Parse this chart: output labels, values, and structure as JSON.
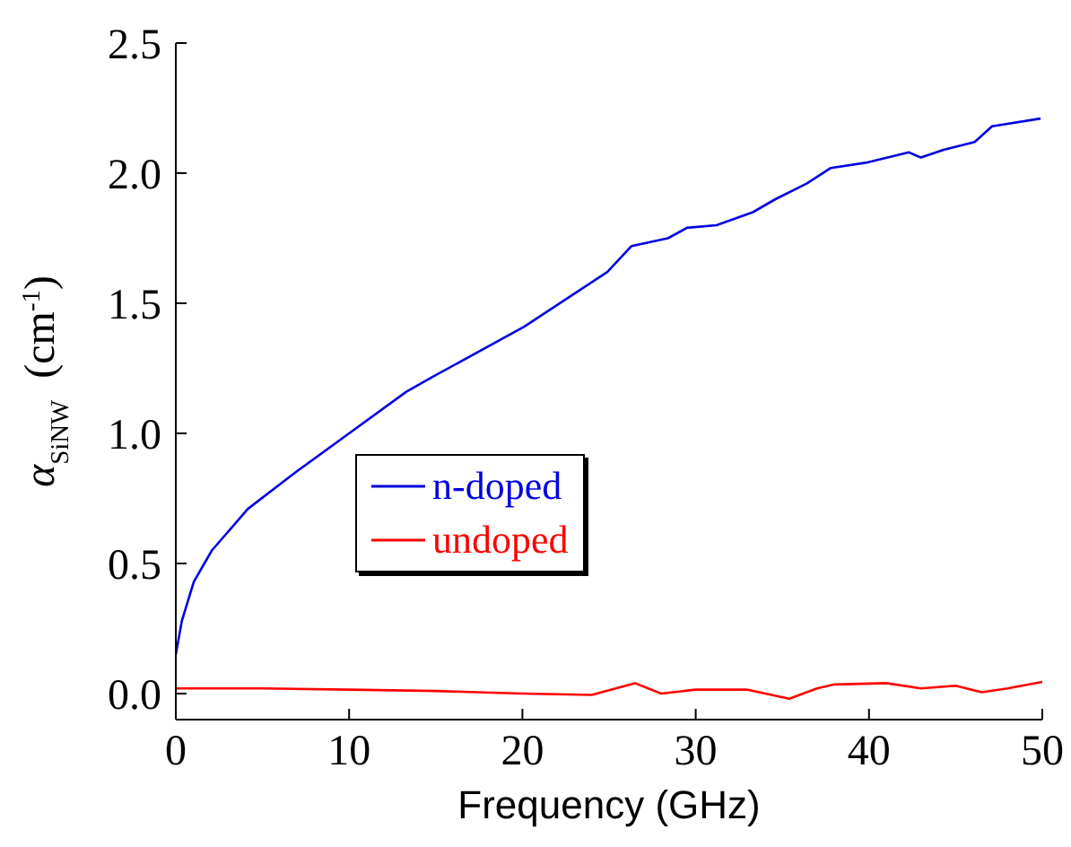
{
  "chart_data": {
    "type": "line",
    "xlabel": "Frequency  (GHz)",
    "ylabel": "α$_{SiNW}$  (cm$^{-1}$)",
    "xlim": [
      0,
      50
    ],
    "xticks": [
      0,
      10,
      20,
      30,
      40,
      50
    ],
    "ylim": [
      -0.1,
      2.5
    ],
    "yticks": [
      {
        "value": 0,
        "label": "0.0"
      },
      0.5,
      {
        "value": 1,
        "label": "1.0"
      },
      1.5,
      {
        "value": 2,
        "label": "2.0"
      },
      2.5
    ],
    "grid": false,
    "legend": "left",
    "marker": "none",
    "line_style": "solid",
    "series": [
      {
        "name": "n-doped",
        "color": "#0000e0",
        "x": [
          0,
          0.35,
          1.04,
          2.08,
          4.16,
          6.9,
          10,
          13.3,
          14.9,
          20.1,
          24.9,
          26.3,
          28.4,
          29.5,
          31.2,
          33.3,
          34.6,
          36.4,
          37.8,
          39.8,
          42.3,
          43,
          44.3,
          46.1,
          47.1,
          49.9
        ],
        "values": [
          0.15,
          0.28,
          0.43,
          0.55,
          0.71,
          0.85,
          1,
          1.16,
          1.22,
          1.41,
          1.62,
          1.72,
          1.75,
          1.79,
          1.8,
          1.85,
          1.9,
          1.96,
          2.02,
          2.04,
          2.08,
          2.06,
          2.09,
          2.12,
          2.18,
          2.21
        ]
      },
      {
        "name": "undoped",
        "color": "#ff0000",
        "x": [
          0,
          5,
          10,
          15,
          20,
          24,
          26.5,
          28,
          30,
          33,
          35.4,
          37,
          38,
          41,
          43,
          45,
          46.5,
          48,
          50
        ],
        "values": [
          0.02,
          0.02,
          0.015,
          0.01,
          0,
          -0.005,
          0.04,
          0,
          0.015,
          0.015,
          -0.02,
          0.02,
          0.035,
          0.04,
          0.02,
          0.03,
          0.005,
          0.02,
          0.045
        ]
      }
    ]
  }
}
